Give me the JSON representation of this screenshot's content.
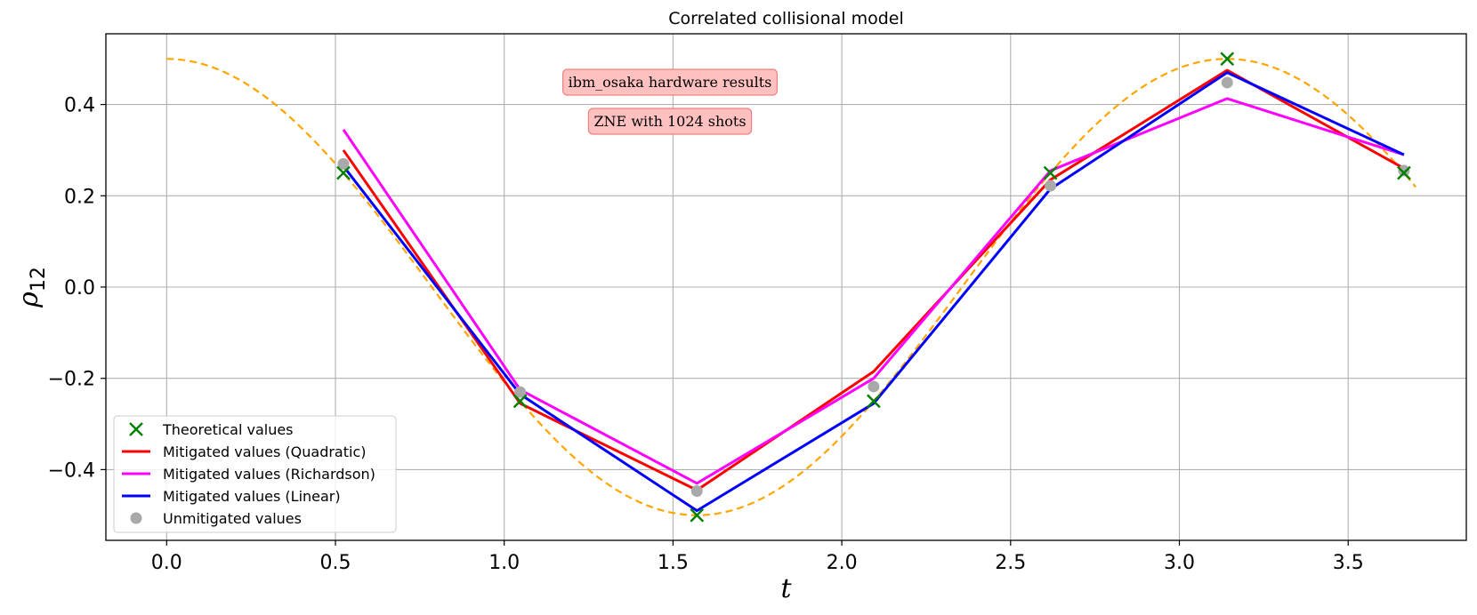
{
  "chart_data": {
    "type": "line",
    "title": "Correlated collisional model",
    "xlabel": "t",
    "ylabel_base": "ρ",
    "ylabel_sub": "12",
    "xlim": [
      -0.18,
      3.85
    ],
    "ylim": [
      -0.555,
      0.555
    ],
    "grid": true,
    "legend_position": "lower-left",
    "x_ticks": [
      0.0,
      0.5,
      1.0,
      1.5,
      2.0,
      2.5,
      3.0,
      3.5
    ],
    "x_tick_labels": [
      "0.0",
      "0.5",
      "1.0",
      "1.5",
      "2.0",
      "2.5",
      "3.0",
      "3.5"
    ],
    "y_ticks": [
      -0.4,
      -0.2,
      0.0,
      0.2,
      0.4
    ],
    "y_tick_labels": [
      "−0.4",
      "−0.2",
      "0.0",
      "0.2",
      "0.4"
    ],
    "x": [
      0.5236,
      1.0472,
      1.5708,
      2.0944,
      2.618,
      3.1416,
      3.6652
    ],
    "theory_curve": {
      "function": "0.5*cos(2t)",
      "x_range": [
        0,
        3.7
      ],
      "color": "#ffa500",
      "style": "dashed"
    },
    "series": [
      {
        "name": "Theoretical values",
        "kind": "marker-x",
        "color": "#008000",
        "values": [
          0.25,
          -0.25,
          -0.5,
          -0.25,
          0.25,
          0.5,
          0.25
        ]
      },
      {
        "name": "Mitigated values (Quadratic)",
        "kind": "line",
        "color": "#ff0000",
        "values": [
          0.3,
          -0.255,
          -0.445,
          -0.185,
          0.235,
          0.475,
          0.26
        ]
      },
      {
        "name": "Mitigated values (Richardson)",
        "kind": "line",
        "color": "#ff00ff",
        "values": [
          0.345,
          -0.225,
          -0.43,
          -0.2,
          0.255,
          0.413,
          0.29
        ]
      },
      {
        "name": "Mitigated values (Linear)",
        "kind": "line",
        "color": "#0000ff",
        "values": [
          0.265,
          -0.235,
          -0.49,
          -0.255,
          0.215,
          0.47,
          0.29
        ]
      },
      {
        "name": "Unmitigated values",
        "kind": "marker-dot",
        "color": "#a9a9a9",
        "values": [
          0.27,
          -0.23,
          -0.447,
          -0.218,
          0.222,
          0.448,
          0.255
        ]
      }
    ],
    "annotations": [
      {
        "text": "ibm_osaka hardware results"
      },
      {
        "text": "ZNE with 1024 shots"
      }
    ]
  }
}
